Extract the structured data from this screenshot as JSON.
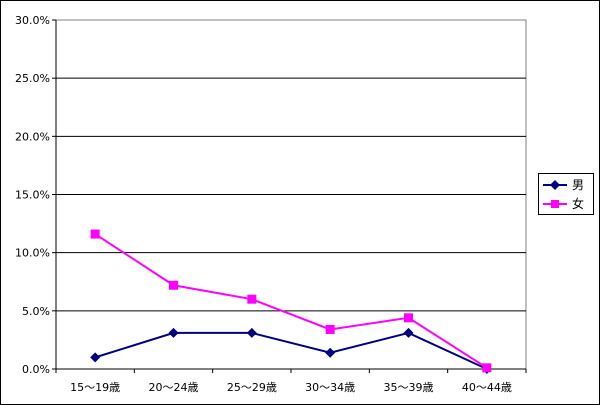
{
  "chart_data": {
    "type": "line",
    "title": "",
    "xlabel": "",
    "ylabel": "",
    "categories": [
      "15～19歳",
      "20～24歳",
      "25～29歳",
      "30～34歳",
      "35～39歳",
      "40～44歳"
    ],
    "ylim": [
      0,
      30
    ],
    "y_ticks": [
      "0.0%",
      "5.0%",
      "10.0%",
      "15.0%",
      "20.0%",
      "25.0%",
      "30.0%"
    ],
    "grid": true,
    "legend_position": "right",
    "series": [
      {
        "name": "男",
        "values": [
          1.0,
          3.1,
          3.1,
          1.4,
          3.1,
          0.0
        ],
        "color": "#000080",
        "marker": "diamond"
      },
      {
        "name": "女",
        "values": [
          11.6,
          7.2,
          6.0,
          3.4,
          4.4,
          0.1
        ],
        "color": "#ff00ff",
        "marker": "square"
      }
    ]
  }
}
